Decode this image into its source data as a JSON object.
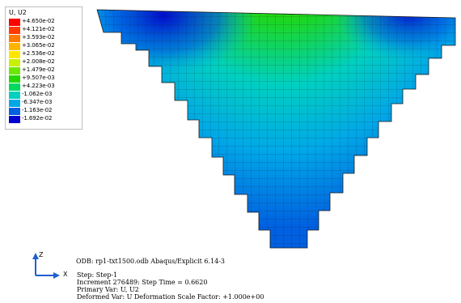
{
  "legend": {
    "title": "U, U2",
    "entries": [
      {
        "label": "+4.650e-02",
        "color": "#ff0000"
      },
      {
        "label": "+4.121e-02",
        "color": "#ff3a00"
      },
      {
        "label": "+3.593e-02",
        "color": "#ff7a00"
      },
      {
        "label": "+3.065e-02",
        "color": "#ffb400"
      },
      {
        "label": "+2.536e-02",
        "color": "#ffe600"
      },
      {
        "label": "+2.008e-02",
        "color": "#c8f000"
      },
      {
        "label": "+1.479e-02",
        "color": "#6ee600"
      },
      {
        "label": "+9.507e-03",
        "color": "#22d800"
      },
      {
        "label": "+4.223e-03",
        "color": "#00d860"
      },
      {
        "label": "-1.062e-03",
        "color": "#00d0c0"
      },
      {
        "label": "-6.347e-03",
        "color": "#00a8e8"
      },
      {
        "label": "-1.163e-02",
        "color": "#0060e0"
      },
      {
        "label": "-1.692e-02",
        "color": "#0000d0"
      }
    ]
  },
  "info": {
    "odb": "ODB: rp1-txt1500.odb    Abaqus/Explicit 6.14-3",
    "step": "Step: Step-1",
    "increment": "Increment    276489: Step Time =    0.6620",
    "primary_var": "Primary Var: U, U2",
    "deformed_var": "Deformed Var: U   Deformation Scale Factor: +1.000e+00"
  },
  "triad": {
    "z_label": "Z",
    "x_label": "X"
  }
}
